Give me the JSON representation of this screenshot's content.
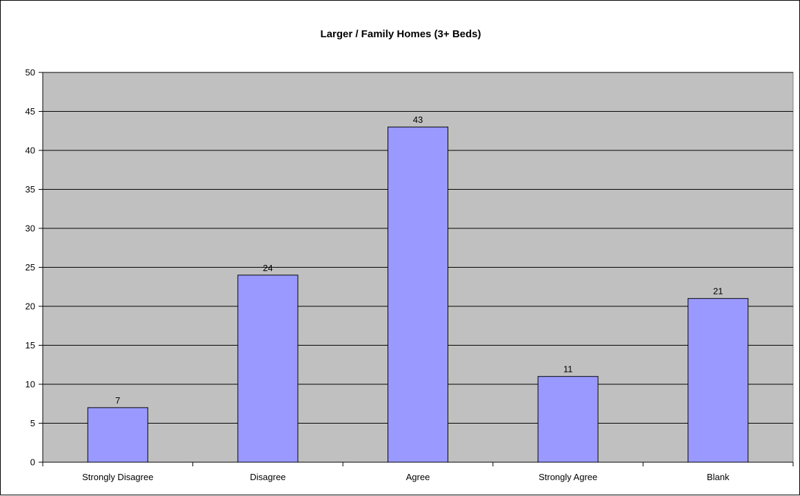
{
  "chart_data": {
    "type": "bar",
    "title": "Larger / Family Homes (3+ Beds)",
    "xlabel": "",
    "ylabel": "",
    "categories": [
      "Strongly Disagree",
      "Disagree",
      "Agree",
      "Strongly Agree",
      "Blank"
    ],
    "values": [
      7,
      24,
      43,
      11,
      21
    ],
    "ylim": [
      0,
      50
    ],
    "ytick_step": 5,
    "yticks": [
      "0",
      "5",
      "10",
      "15",
      "20",
      "25",
      "30",
      "35",
      "40",
      "45",
      "50"
    ],
    "data_labels": [
      "7",
      "24",
      "43",
      "11",
      "21"
    ],
    "grid": true,
    "legend": "none",
    "colors": {
      "plot_background": "#c0c0c0",
      "bar_fill": "#9999ff",
      "bar_stroke": "#000000",
      "grid": "#000000"
    }
  }
}
